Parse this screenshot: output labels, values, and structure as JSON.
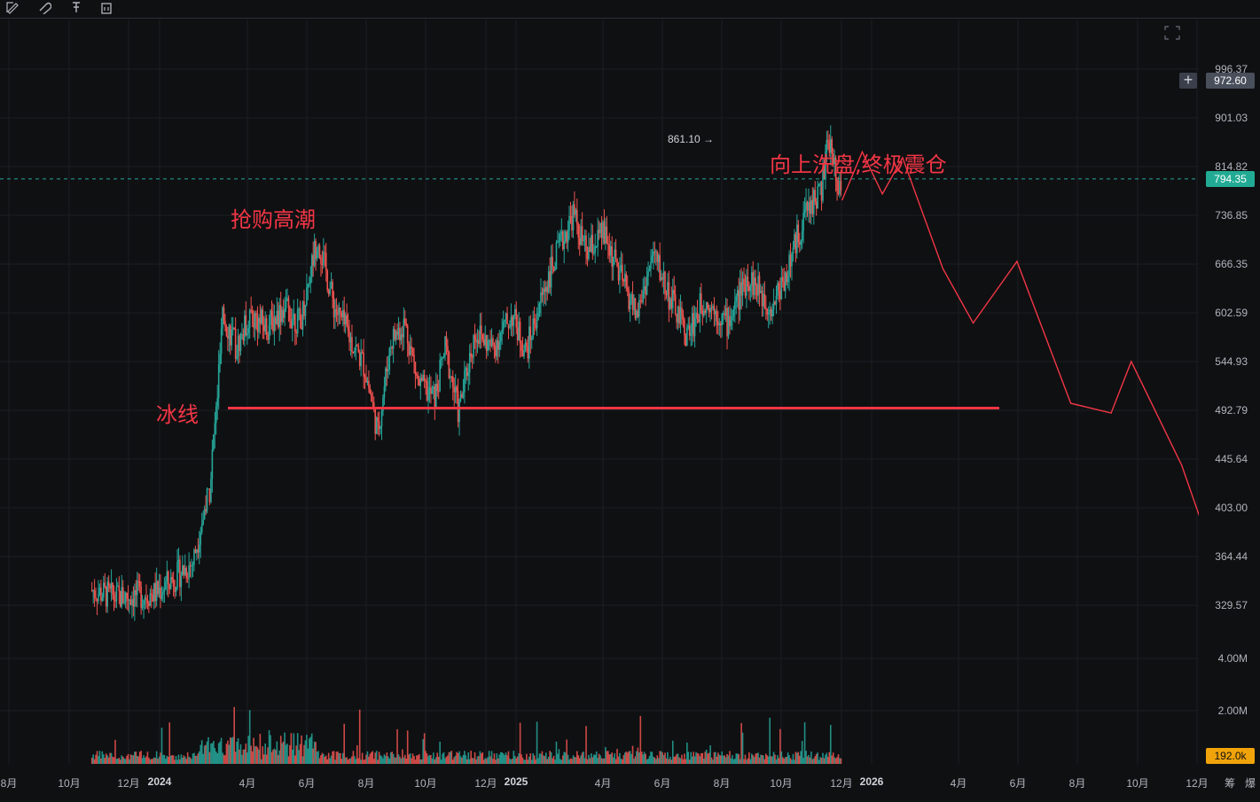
{
  "toolbar": {
    "icons": [
      "draw-icon",
      "magnet-icon",
      "pin-icon",
      "trash-icon"
    ]
  },
  "chart_data": {
    "type": "candlestick",
    "price_axis_labels": [
      "996.37",
      "901.03",
      "814.82",
      "736.85",
      "666.35",
      "602.59",
      "544.93",
      "492.79",
      "445.64",
      "403.00",
      "364.44",
      "329.57"
    ],
    "volume_axis_labels": [
      "4.00M",
      "2.00M"
    ],
    "time_axis_labels": [
      {
        "text": "8月",
        "year": false
      },
      {
        "text": "10月",
        "year": false
      },
      {
        "text": "12月",
        "year": false
      },
      {
        "text": "2024",
        "year": true
      },
      {
        "text": "4月",
        "year": false
      },
      {
        "text": "6月",
        "year": false
      },
      {
        "text": "8月",
        "year": false
      },
      {
        "text": "10月",
        "year": false
      },
      {
        "text": "12月",
        "year": false
      },
      {
        "text": "2025",
        "year": true
      },
      {
        "text": "4月",
        "year": false
      },
      {
        "text": "6月",
        "year": false
      },
      {
        "text": "8月",
        "year": false
      },
      {
        "text": "10月",
        "year": false
      },
      {
        "text": "12月",
        "year": false
      },
      {
        "text": "2026",
        "year": true
      },
      {
        "text": "4月",
        "year": false
      },
      {
        "text": "6月",
        "year": false
      },
      {
        "text": "8月",
        "year": false
      },
      {
        "text": "10月",
        "year": false
      },
      {
        "text": "12月",
        "year": false
      },
      {
        "text": "筹",
        "year": false
      },
      {
        "text": "爆",
        "year": false
      }
    ],
    "current_price": "794.35",
    "crosshair_price": "972.60",
    "volume_badge": "192.0k",
    "peak_label": "861.10 →",
    "ice_line_price": 495,
    "price_path": [
      [
        2023.83,
        340
      ],
      [
        2023.9,
        335
      ],
      [
        2024.02,
        338
      ],
      [
        2024.13,
        360
      ],
      [
        2024.18,
        420
      ],
      [
        2024.2,
        495
      ],
      [
        2024.22,
        600
      ],
      [
        2024.26,
        560
      ],
      [
        2024.3,
        600
      ],
      [
        2024.35,
        585
      ],
      [
        2024.4,
        610
      ],
      [
        2024.45,
        590
      ],
      [
        2024.5,
        705
      ],
      [
        2024.55,
        610
      ],
      [
        2024.6,
        570
      ],
      [
        2024.64,
        540
      ],
      [
        2024.68,
        470
      ],
      [
        2024.72,
        570
      ],
      [
        2024.76,
        590
      ],
      [
        2024.8,
        520
      ],
      [
        2024.85,
        505
      ],
      [
        2024.88,
        560
      ],
      [
        2024.92,
        490
      ],
      [
        2024.97,
        580
      ],
      [
        2025.02,
        560
      ],
      [
        2025.08,
        600
      ],
      [
        2025.12,
        555
      ],
      [
        2025.18,
        640
      ],
      [
        2025.23,
        700
      ],
      [
        2025.26,
        740
      ],
      [
        2025.3,
        680
      ],
      [
        2025.35,
        710
      ],
      [
        2025.4,
        650
      ],
      [
        2025.45,
        600
      ],
      [
        2025.5,
        680
      ],
      [
        2025.55,
        620
      ],
      [
        2025.6,
        575
      ],
      [
        2025.65,
        620
      ],
      [
        2025.72,
        590
      ],
      [
        2025.78,
        650
      ],
      [
        2025.85,
        610
      ],
      [
        2025.9,
        660
      ],
      [
        2025.95,
        740
      ],
      [
        2026.0,
        780
      ],
      [
        2026.02,
        861.1
      ],
      [
        2026.06,
        760
      ]
    ],
    "volume_scale_max": "4.00M",
    "forecast_path": [
      [
        2026.06,
        760
      ],
      [
        2026.12,
        840
      ],
      [
        2026.18,
        770
      ],
      [
        2026.24,
        830
      ],
      [
        2026.36,
        660
      ],
      [
        2026.45,
        590
      ],
      [
        2026.58,
        670
      ],
      [
        2026.74,
        500
      ],
      [
        2026.86,
        490
      ],
      [
        2026.92,
        545
      ],
      [
        2027.07,
        440
      ],
      [
        2027.15,
        375
      ]
    ],
    "colors": {
      "up": "#26a69a",
      "down": "#ef5350",
      "annotation": "#f23645",
      "current_price_bg": "#22ab94",
      "volume_badge_bg": "#f0a30a",
      "grid": "#1c1e24",
      "dashed": "#26a69a"
    }
  },
  "annotations": {
    "climax": "抢购高潮",
    "ice_line": "冰线",
    "washout": "向上洗盘,终极震仓"
  }
}
